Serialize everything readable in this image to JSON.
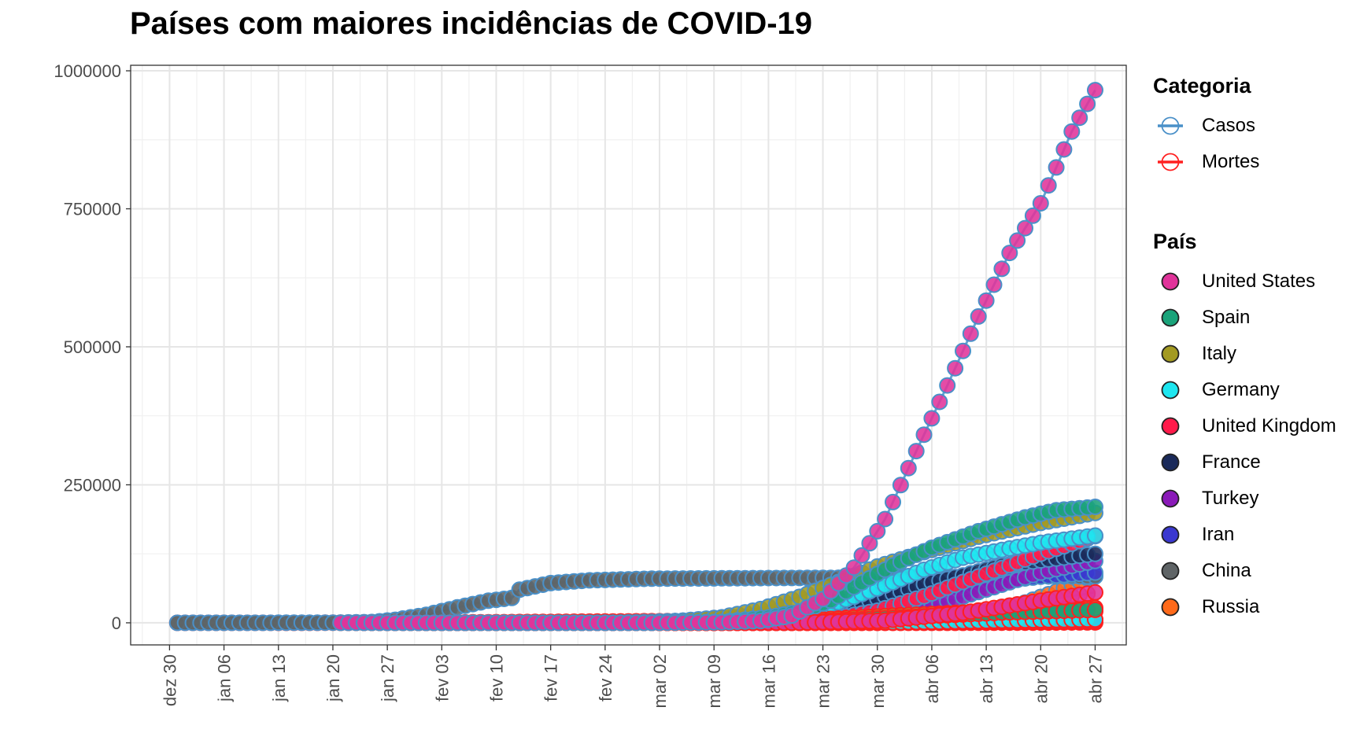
{
  "chart_data": {
    "type": "line",
    "title": "Países com maiores incidências de COVID-19",
    "xlabel": "",
    "ylabel": "",
    "ylim": [
      -40000,
      1010000
    ],
    "xlim_days": [
      "2019-12-25",
      "2020-05-01"
    ],
    "yticks": [
      0,
      250000,
      500000,
      750000,
      1000000
    ],
    "ytick_labels": [
      "0",
      "250000",
      "500000",
      "750000",
      "1000000"
    ],
    "xtick_dates": [
      "2019-12-30",
      "2020-01-06",
      "2020-01-13",
      "2020-01-20",
      "2020-01-27",
      "2020-02-03",
      "2020-02-10",
      "2020-02-17",
      "2020-02-24",
      "2020-03-02",
      "2020-03-09",
      "2020-03-16",
      "2020-03-23",
      "2020-03-30",
      "2020-04-06",
      "2020-04-13",
      "2020-04-20",
      "2020-04-27"
    ],
    "xtick_labels": [
      "dez 30",
      "jan 06",
      "jan 13",
      "jan 20",
      "jan 27",
      "fev 03",
      "fev 10",
      "fev 17",
      "fev 24",
      "mar 02",
      "mar 09",
      "mar 16",
      "mar 23",
      "mar 30",
      "abr 06",
      "abr 13",
      "abr 20",
      "abr 27"
    ],
    "grid": true,
    "legend_position": "right",
    "categories": [
      {
        "name": "Casos",
        "color": "#4a90c8"
      },
      {
        "name": "Mortes",
        "color": "#ff2020"
      }
    ],
    "series": [
      {
        "name": "United States",
        "color": "#e0339a",
        "start": "2020-01-21",
        "casos": [
          [
            "2020-01-21",
            1
          ],
          [
            "2020-03-01",
            70
          ],
          [
            "2020-03-10",
            960
          ],
          [
            "2020-03-15",
            3500
          ],
          [
            "2020-03-19",
            13000
          ],
          [
            "2020-03-23",
            43000
          ],
          [
            "2020-03-27",
            100000
          ],
          [
            "2020-03-31",
            188000
          ],
          [
            "2020-04-04",
            311000
          ],
          [
            "2020-04-08",
            430000
          ],
          [
            "2020-04-12",
            555000
          ],
          [
            "2020-04-16",
            670000
          ],
          [
            "2020-04-20",
            760000
          ],
          [
            "2020-04-24",
            890000
          ],
          [
            "2020-04-27",
            965000
          ]
        ],
        "mortes": [
          [
            "2020-03-01",
            1
          ],
          [
            "2020-03-20",
            200
          ],
          [
            "2020-03-31",
            4000
          ],
          [
            "2020-04-10",
            18000
          ],
          [
            "2020-04-20",
            40000
          ],
          [
            "2020-04-27",
            55000
          ]
        ]
      },
      {
        "name": "Spain",
        "color": "#1aa37a",
        "start": "2020-02-01",
        "casos": [
          [
            "2020-02-01",
            1
          ],
          [
            "2020-03-01",
            80
          ],
          [
            "2020-03-10",
            1700
          ],
          [
            "2020-03-16",
            9900
          ],
          [
            "2020-03-20",
            20000
          ],
          [
            "2020-03-24",
            40000
          ],
          [
            "2020-03-28",
            73000
          ],
          [
            "2020-04-01",
            104000
          ],
          [
            "2020-04-06",
            136000
          ],
          [
            "2020-04-12",
            166000
          ],
          [
            "2020-04-18",
            191000
          ],
          [
            "2020-04-22",
            204000
          ],
          [
            "2020-04-27",
            210000
          ]
        ],
        "mortes": [
          [
            "2020-03-05",
            1
          ],
          [
            "2020-03-20",
            1000
          ],
          [
            "2020-04-01",
            9000
          ],
          [
            "2020-04-15",
            18500
          ],
          [
            "2020-04-27",
            23500
          ]
        ]
      },
      {
        "name": "Italy",
        "color": "#a39a22",
        "start": "2020-01-31",
        "casos": [
          [
            "2020-01-31",
            2
          ],
          [
            "2020-02-21",
            20
          ],
          [
            "2020-02-25",
            320
          ],
          [
            "2020-03-01",
            1700
          ],
          [
            "2020-03-05",
            3900
          ],
          [
            "2020-03-10",
            10000
          ],
          [
            "2020-03-15",
            25000
          ],
          [
            "2020-03-20",
            47000
          ],
          [
            "2020-03-25",
            74000
          ],
          [
            "2020-03-30",
            102000
          ],
          [
            "2020-04-05",
            128000
          ],
          [
            "2020-04-12",
            156000
          ],
          [
            "2020-04-20",
            181000
          ],
          [
            "2020-04-27",
            199000
          ]
        ],
        "mortes": [
          [
            "2020-02-22",
            1
          ],
          [
            "2020-03-10",
            630
          ],
          [
            "2020-03-20",
            4000
          ],
          [
            "2020-04-01",
            13000
          ],
          [
            "2020-04-15",
            21600
          ],
          [
            "2020-04-27",
            26900
          ]
        ]
      },
      {
        "name": "Germany",
        "color": "#1ee6f0",
        "start": "2020-01-28",
        "casos": [
          [
            "2020-01-28",
            1
          ],
          [
            "2020-03-01",
            130
          ],
          [
            "2020-03-10",
            1500
          ],
          [
            "2020-03-16",
            7300
          ],
          [
            "2020-03-20",
            20000
          ],
          [
            "2020-03-25",
            37000
          ],
          [
            "2020-03-30",
            62000
          ],
          [
            "2020-04-05",
            96000
          ],
          [
            "2020-04-10",
            118000
          ],
          [
            "2020-04-15",
            132000
          ],
          [
            "2020-04-20",
            145000
          ],
          [
            "2020-04-27",
            158000
          ]
        ],
        "mortes": [
          [
            "2020-03-09",
            2
          ],
          [
            "2020-03-25",
            200
          ],
          [
            "2020-04-05",
            1600
          ],
          [
            "2020-04-15",
            4000
          ],
          [
            "2020-04-27",
            6000
          ]
        ]
      },
      {
        "name": "United Kingdom",
        "color": "#ff1a4a",
        "start": "2020-01-31",
        "casos": [
          [
            "2020-01-31",
            2
          ],
          [
            "2020-03-01",
            35
          ],
          [
            "2020-03-10",
            380
          ],
          [
            "2020-03-16",
            1500
          ],
          [
            "2020-03-20",
            4000
          ],
          [
            "2020-03-25",
            9500
          ],
          [
            "2020-03-30",
            22000
          ],
          [
            "2020-04-05",
            48000
          ],
          [
            "2020-04-10",
            74000
          ],
          [
            "2020-04-15",
            99000
          ],
          [
            "2020-04-20",
            125000
          ],
          [
            "2020-04-27",
            157000
          ]
        ],
        "mortes": [
          [
            "2020-03-06",
            1
          ],
          [
            "2020-03-25",
            470
          ],
          [
            "2020-04-05",
            4900
          ],
          [
            "2020-04-15",
            13000
          ],
          [
            "2020-04-27",
            21000
          ]
        ]
      },
      {
        "name": "France",
        "color": "#1a2a5a",
        "start": "2020-01-24",
        "casos": [
          [
            "2020-01-24",
            2
          ],
          [
            "2020-02-28",
            60
          ],
          [
            "2020-03-05",
            400
          ],
          [
            "2020-03-10",
            1800
          ],
          [
            "2020-03-15",
            5400
          ],
          [
            "2020-03-20",
            12600
          ],
          [
            "2020-03-25",
            25000
          ],
          [
            "2020-03-30",
            44000
          ],
          [
            "2020-04-05",
            70000
          ],
          [
            "2020-04-10",
            86000
          ],
          [
            "2020-04-15",
            104000
          ],
          [
            "2020-04-20",
            113000
          ],
          [
            "2020-04-27",
            125000
          ]
        ],
        "mortes": [
          [
            "2020-02-15",
            1
          ],
          [
            "2020-03-15",
            120
          ],
          [
            "2020-03-31",
            3500
          ],
          [
            "2020-04-15",
            17000
          ],
          [
            "2020-04-27",
            22800
          ]
        ]
      },
      {
        "name": "Turkey",
        "color": "#8a1ab8",
        "start": "2020-03-11",
        "casos": [
          [
            "2020-03-11",
            1
          ],
          [
            "2020-03-18",
            190
          ],
          [
            "2020-03-24",
            1900
          ],
          [
            "2020-03-30",
            11000
          ],
          [
            "2020-04-05",
            27000
          ],
          [
            "2020-04-10",
            47000
          ],
          [
            "2020-04-15",
            69000
          ],
          [
            "2020-04-20",
            91000
          ],
          [
            "2020-04-27",
            112000
          ]
        ],
        "mortes": [
          [
            "2020-03-17",
            1
          ],
          [
            "2020-04-01",
            280
          ],
          [
            "2020-04-15",
            1500
          ],
          [
            "2020-04-27",
            2900
          ]
        ]
      },
      {
        "name": "Iran",
        "color": "#3a38d0",
        "start": "2020-02-19",
        "casos": [
          [
            "2020-02-19",
            2
          ],
          [
            "2020-02-25",
            95
          ],
          [
            "2020-03-01",
            980
          ],
          [
            "2020-03-06",
            4700
          ],
          [
            "2020-03-12",
            10000
          ],
          [
            "2020-03-18",
            17000
          ],
          [
            "2020-03-24",
            24800
          ],
          [
            "2020-03-30",
            41000
          ],
          [
            "2020-04-05",
            58000
          ],
          [
            "2020-04-12",
            71000
          ],
          [
            "2020-04-20",
            83500
          ],
          [
            "2020-04-27",
            91000
          ]
        ],
        "mortes": [
          [
            "2020-02-19",
            2
          ],
          [
            "2020-03-10",
            290
          ],
          [
            "2020-03-25",
            2000
          ],
          [
            "2020-04-10",
            4200
          ],
          [
            "2020-04-27",
            5800
          ]
        ]
      },
      {
        "name": "China",
        "color": "#5f6466",
        "start": "2019-12-31",
        "casos": [
          [
            "2019-12-31",
            27
          ],
          [
            "2020-01-10",
            41
          ],
          [
            "2020-01-20",
            290
          ],
          [
            "2020-01-25",
            1400
          ],
          [
            "2020-01-28",
            5500
          ],
          [
            "2020-02-01",
            14400
          ],
          [
            "2020-02-05",
            28000
          ],
          [
            "2020-02-09",
            40000
          ],
          [
            "2020-02-12",
            45000
          ],
          [
            "2020-02-13",
            60000
          ],
          [
            "2020-02-17",
            72000
          ],
          [
            "2020-02-22",
            77000
          ],
          [
            "2020-03-01",
            80000
          ],
          [
            "2020-03-15",
            81000
          ],
          [
            "2020-03-31",
            82000
          ],
          [
            "2020-04-17",
            84000
          ],
          [
            "2020-04-27",
            84000
          ]
        ],
        "mortes": [
          [
            "2020-01-11",
            1
          ],
          [
            "2020-02-01",
            300
          ],
          [
            "2020-02-15",
            1600
          ],
          [
            "2020-03-01",
            2900
          ],
          [
            "2020-04-17",
            4630
          ],
          [
            "2020-04-27",
            4640
          ]
        ]
      },
      {
        "name": "Russia",
        "color": "#ff6a1a",
        "start": "2020-01-31",
        "casos": [
          [
            "2020-01-31",
            2
          ],
          [
            "2020-03-10",
            20
          ],
          [
            "2020-03-20",
            250
          ],
          [
            "2020-03-30",
            1800
          ],
          [
            "2020-04-06",
            6300
          ],
          [
            "2020-04-12",
            15700
          ],
          [
            "2020-04-18",
            36800
          ],
          [
            "2020-04-22",
            57000
          ],
          [
            "2020-04-27",
            87000
          ]
        ],
        "mortes": [
          [
            "2020-03-25",
            1
          ],
          [
            "2020-04-10",
            100
          ],
          [
            "2020-04-20",
            400
          ],
          [
            "2020-04-27",
            800
          ]
        ]
      }
    ]
  }
}
